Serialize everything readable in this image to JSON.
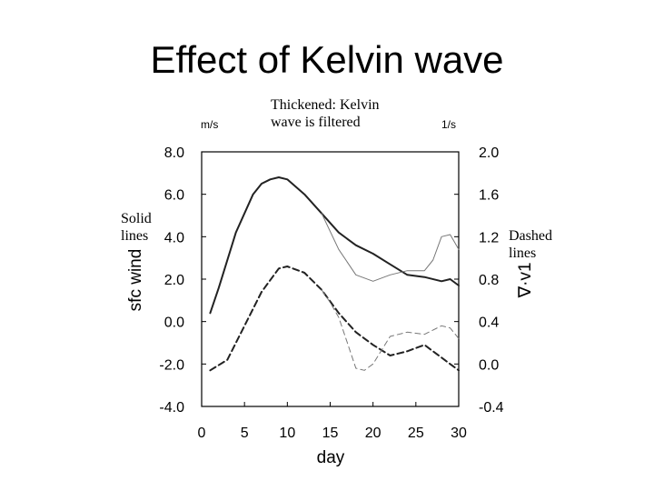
{
  "title": "Effect of Kelvin wave",
  "annotations": {
    "thickened": "Thickened: Kelvin wave is filtered",
    "solid": "Solid lines",
    "dashed": "Dashed lines"
  },
  "chart_data": {
    "type": "line",
    "xlabel": "day",
    "ylabel_left": "sfc wind",
    "ylabel_right": "∇·v1",
    "unit_left": "m/s",
    "unit_right": "1/s",
    "xlim": [
      0,
      30
    ],
    "ylim_left": [
      -4.0,
      8.0
    ],
    "ylim_right": [
      -0.4,
      2.0
    ],
    "x_ticks": [
      0,
      5,
      10,
      15,
      20,
      25,
      30
    ],
    "x_tick_labels": [
      "0",
      "5",
      "10",
      "15",
      "20",
      "25",
      "30"
    ],
    "y_left_ticks": [
      -4.0,
      -2.0,
      0.0,
      2.0,
      4.0,
      6.0,
      8.0
    ],
    "y_left_tick_labels": [
      "-4.0",
      "-2.0",
      "0.0",
      "2.0",
      "4.0",
      "6.0",
      "8.0"
    ],
    "y_right_ticks": [
      -0.4,
      0.0,
      0.4,
      0.8,
      1.2,
      1.6,
      2.0
    ],
    "y_right_tick_labels": [
      "-0.4",
      "0.0",
      "0.4",
      "0.8",
      "1.2",
      "1.6",
      "2.0"
    ],
    "grid": false,
    "series": [
      {
        "axis": "left",
        "style": "solid",
        "thickness": "thick",
        "x": [
          1,
          2,
          4,
          6,
          7,
          8,
          9,
          10,
          12,
          14,
          16,
          18,
          20,
          22,
          24,
          26,
          28,
          29,
          30
        ],
        "y": [
          0.4,
          1.6,
          4.2,
          6.0,
          6.5,
          6.7,
          6.8,
          6.7,
          6.0,
          5.1,
          4.2,
          3.6,
          3.2,
          2.7,
          2.2,
          2.1,
          1.9,
          2.0,
          1.7
        ]
      },
      {
        "axis": "left",
        "style": "solid",
        "thickness": "thin",
        "x": [
          14,
          16,
          18,
          20,
          22,
          24,
          26,
          27,
          28,
          29,
          30
        ],
        "y": [
          5.1,
          3.4,
          2.2,
          1.9,
          2.2,
          2.4,
          2.4,
          2.9,
          4.0,
          4.1,
          3.4
        ]
      },
      {
        "axis": "left",
        "style": "dashed",
        "thickness": "thick",
        "x": [
          1,
          3,
          5,
          7,
          9,
          10,
          12,
          14,
          16,
          18,
          20,
          22,
          24,
          26,
          28,
          30
        ],
        "y": [
          -2.3,
          -1.8,
          -0.2,
          1.4,
          2.5,
          2.6,
          2.3,
          1.5,
          0.4,
          -0.5,
          -1.1,
          -1.6,
          -1.4,
          -1.1,
          -1.7,
          -2.3
        ]
      },
      {
        "axis": "left",
        "style": "dashed",
        "thickness": "thin",
        "x": [
          14,
          15,
          16,
          17,
          18,
          19,
          20,
          22,
          24,
          26,
          28,
          29,
          30
        ],
        "y": [
          1.5,
          0.9,
          0.2,
          -1.0,
          -2.2,
          -2.3,
          -2.0,
          -0.7,
          -0.5,
          -0.6,
          -0.2,
          -0.3,
          -0.8
        ]
      }
    ]
  }
}
